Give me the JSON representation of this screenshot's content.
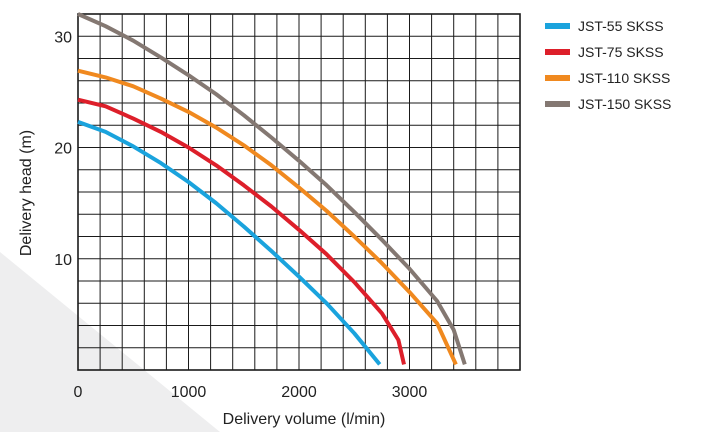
{
  "chart_data": {
    "type": "line",
    "title": "",
    "xlabel": "Delivery volume (l/min)",
    "ylabel": "Delivery head (m)",
    "xlim": [
      0,
      4000
    ],
    "ylim": [
      0,
      32
    ],
    "x_ticks": [
      0,
      1000,
      2000,
      3000
    ],
    "y_ticks": [
      10,
      20,
      30
    ],
    "grid": true,
    "grid_columns": 20,
    "grid_rows": 16,
    "legend_position": "right",
    "series": [
      {
        "name": "JST-55 SKSS",
        "color": "#1aa3dd",
        "points": [
          [
            0,
            22.3
          ],
          [
            250,
            21.4
          ],
          [
            500,
            20.1
          ],
          [
            750,
            18.6
          ],
          [
            1000,
            16.9
          ],
          [
            1250,
            15.0
          ],
          [
            1500,
            12.9
          ],
          [
            1750,
            10.7
          ],
          [
            2000,
            8.4
          ],
          [
            2250,
            6.0
          ],
          [
            2500,
            3.3
          ],
          [
            2730,
            0.5
          ]
        ]
      },
      {
        "name": "JST-75 SKSS",
        "color": "#dd1f2a",
        "points": [
          [
            0,
            24.3
          ],
          [
            250,
            23.7
          ],
          [
            500,
            22.6
          ],
          [
            750,
            21.4
          ],
          [
            1000,
            20.0
          ],
          [
            1250,
            18.4
          ],
          [
            1500,
            16.6
          ],
          [
            1750,
            14.7
          ],
          [
            2000,
            12.6
          ],
          [
            2250,
            10.4
          ],
          [
            2500,
            7.9
          ],
          [
            2750,
            5.1
          ],
          [
            2900,
            2.7
          ],
          [
            2950,
            0.5
          ]
        ]
      },
      {
        "name": "JST-110 SKSS",
        "color": "#f0891f",
        "points": [
          [
            0,
            26.9
          ],
          [
            250,
            26.3
          ],
          [
            500,
            25.5
          ],
          [
            750,
            24.4
          ],
          [
            1000,
            23.2
          ],
          [
            1250,
            21.8
          ],
          [
            1500,
            20.2
          ],
          [
            1750,
            18.4
          ],
          [
            2000,
            16.4
          ],
          [
            2250,
            14.3
          ],
          [
            2500,
            12.0
          ],
          [
            2750,
            9.6
          ],
          [
            3000,
            7.0
          ],
          [
            3250,
            4.2
          ],
          [
            3420,
            0.5
          ]
        ]
      },
      {
        "name": "JST-150 SKSS",
        "color": "#847872",
        "points": [
          [
            0,
            32.0
          ],
          [
            250,
            30.9
          ],
          [
            500,
            29.6
          ],
          [
            750,
            28.1
          ],
          [
            1000,
            26.5
          ],
          [
            1250,
            24.8
          ],
          [
            1500,
            22.9
          ],
          [
            1750,
            20.9
          ],
          [
            2000,
            18.8
          ],
          [
            2250,
            16.6
          ],
          [
            2500,
            14.2
          ],
          [
            2750,
            11.7
          ],
          [
            3000,
            9.1
          ],
          [
            3250,
            6.2
          ],
          [
            3400,
            3.6
          ],
          [
            3500,
            0.5
          ]
        ]
      }
    ]
  },
  "decor": {
    "background_shape_color": "#eeeeef",
    "grid_color": "#1a1a1a",
    "axis_color": "#1a1a1a"
  }
}
